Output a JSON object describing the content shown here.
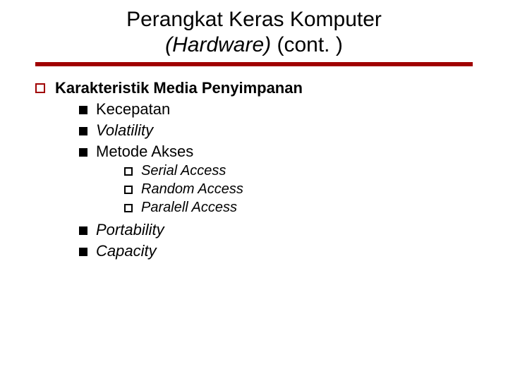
{
  "colors": {
    "accent": "#a00000",
    "text": "#000000",
    "background": "#ffffff"
  },
  "typography": {
    "title_fontsize": 30,
    "lvl1_fontsize": 22,
    "lvl2_fontsize": 22,
    "lvl3_fontsize": 20,
    "font_family": "Verdana"
  },
  "title": {
    "line1": "Perangkat Keras Komputer",
    "line2_italic": "(Hardware)",
    "line2_rest": " (cont. )"
  },
  "content": {
    "heading": "Karakteristik Media Penyimpanan",
    "items": [
      {
        "label": "Kecepatan",
        "italic": false
      },
      {
        "label": "Volatility",
        "italic": true
      },
      {
        "label": "Metode Akses",
        "italic": false,
        "sub": [
          "Serial Access",
          "Random Access",
          "Paralell Access"
        ]
      },
      {
        "label": "Portability",
        "italic": true
      },
      {
        "label": "Capacity",
        "italic": true
      }
    ]
  }
}
